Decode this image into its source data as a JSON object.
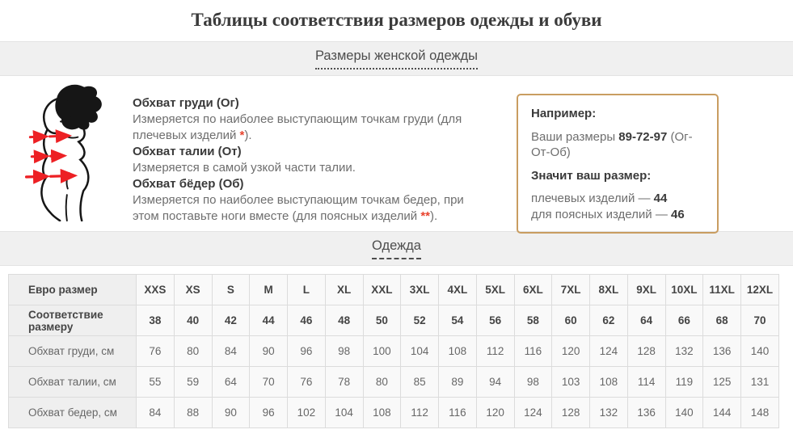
{
  "page": {
    "title": "Таблицы соответствия размеров одежды и обуви"
  },
  "sections": {
    "women_clothing_title": "Размеры женской одежды",
    "clothing_title": "Одежда"
  },
  "figure": {
    "description": "woman-silhouette-with-measurement-arrows"
  },
  "measurements": {
    "items": [
      {
        "heading": "Обхват груди (Ог)",
        "desc": "Измеряется по наиболее выступающим точкам груди (для плечевых изделий ",
        "mark": "*",
        "desc_end": ")."
      },
      {
        "heading": "Обхват талии (От)",
        "desc": "Измеряется в самой узкой части талии.",
        "mark": "",
        "desc_end": ""
      },
      {
        "heading": "Обхват бёдер (Об)",
        "desc": "Измеряется по наиболее выступающим точкам бедер, при этом поставьте ноги вместе (для поясных изделий ",
        "mark": "**",
        "desc_end": ")."
      }
    ]
  },
  "example_box": {
    "title": "Например:",
    "line1_prefix": "Ваши размеры ",
    "line1_value": "89-72-97",
    "line1_suffix": " (Ог-От-Об)",
    "line2": "Значит ваш размер:",
    "line3_prefix": "плечевых изделий — ",
    "line3_value": "44",
    "line4_prefix": "для поясных изделий — ",
    "line4_value": "46"
  },
  "size_table": {
    "rows": [
      {
        "label": "Евро размер",
        "bold": true,
        "values": [
          "XXS",
          "XS",
          "S",
          "M",
          "L",
          "XL",
          "XXL",
          "3XL",
          "4XL",
          "5XL",
          "6XL",
          "7XL",
          "8XL",
          "9XL",
          "10XL",
          "11XL",
          "12XL"
        ]
      },
      {
        "label": "Соответствие размеру",
        "bold": true,
        "values": [
          "38",
          "40",
          "42",
          "44",
          "46",
          "48",
          "50",
          "52",
          "54",
          "56",
          "58",
          "60",
          "62",
          "64",
          "66",
          "68",
          "70"
        ]
      },
      {
        "label": "Обхват груди, см",
        "bold": false,
        "values": [
          "76",
          "80",
          "84",
          "90",
          "96",
          "98",
          "100",
          "104",
          "108",
          "112",
          "116",
          "120",
          "124",
          "128",
          "132",
          "136",
          "140"
        ]
      },
      {
        "label": "Обхват талии, см",
        "bold": false,
        "values": [
          "55",
          "59",
          "64",
          "70",
          "76",
          "78",
          "80",
          "85",
          "89",
          "94",
          "98",
          "103",
          "108",
          "114",
          "119",
          "125",
          "131"
        ]
      },
      {
        "label": "Обхват бедер, см",
        "bold": false,
        "values": [
          "84",
          "88",
          "90",
          "96",
          "102",
          "104",
          "108",
          "112",
          "116",
          "120",
          "124",
          "128",
          "132",
          "136",
          "140",
          "144",
          "148"
        ]
      }
    ]
  },
  "colors": {
    "accent_red": "#ed2024",
    "example_box_border": "#c99d61",
    "band_background": "#f0f0f0",
    "table_label_background": "#efefef"
  }
}
